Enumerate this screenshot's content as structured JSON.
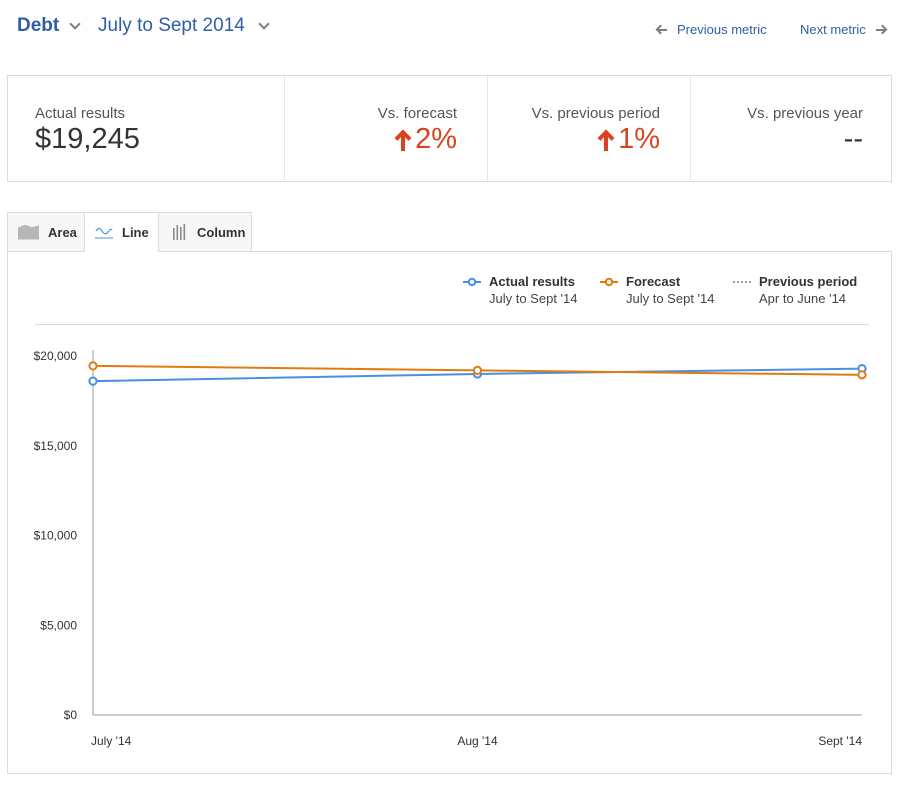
{
  "header": {
    "metric": "Debt",
    "period": "July to Sept 2014",
    "prev_metric": "Previous metric",
    "next_metric": "Next metric"
  },
  "summary": {
    "actual": {
      "caption": "Actual results",
      "value": "$19,245"
    },
    "vs_forecast": {
      "caption": "Vs. forecast",
      "value": "2%",
      "direction": "up"
    },
    "vs_previous_period": {
      "caption": "Vs. previous period",
      "value": "1%",
      "direction": "up"
    },
    "vs_previous_year": {
      "caption": "Vs. previous year",
      "value": "--"
    }
  },
  "tabs": [
    {
      "label": "Area",
      "icon": "area-chart-icon"
    },
    {
      "label": "Line",
      "icon": "line-chart-icon",
      "selected": true
    },
    {
      "label": "Column",
      "icon": "column-chart-icon"
    }
  ],
  "legend": {
    "actual": {
      "name": "Actual results",
      "period": "July to Sept '14"
    },
    "forecast": {
      "name": "Forecast",
      "period": "July to Sept '14"
    },
    "previous": {
      "name": "Previous period",
      "period": "Apr to June '14"
    }
  },
  "colors": {
    "accent": "#2e5ea6",
    "up": "#d9441f",
    "actual": "#4a90e2",
    "forecast": "#e07b12",
    "previous": "#7f7f7f"
  },
  "chart_data": {
    "type": "line",
    "categories": [
      "July '14",
      "Aug '14",
      "Sept '14"
    ],
    "series": [
      {
        "name": "Actual results",
        "values": [
          18600,
          19000,
          19300
        ]
      },
      {
        "name": "Forecast",
        "values": [
          19450,
          19200,
          18950
        ]
      }
    ],
    "ylim": [
      0,
      20000
    ],
    "yticks": [
      0,
      5000,
      10000,
      15000,
      20000
    ],
    "ytick_labels": [
      "$0",
      "$5,000",
      "$10,000",
      "$15,000",
      "$20,000"
    ],
    "grid": false
  }
}
